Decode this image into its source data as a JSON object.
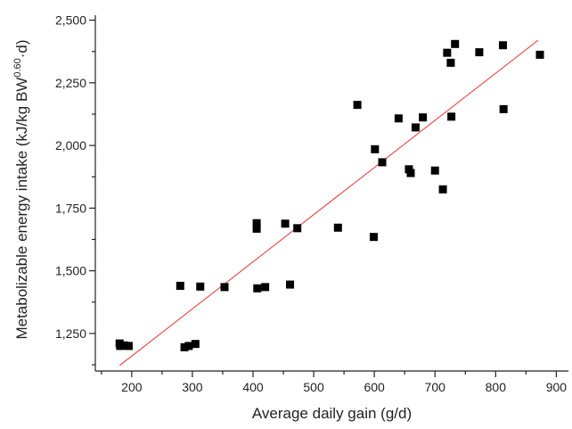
{
  "chart_data": {
    "type": "scatter",
    "title": "",
    "xlabel": "Average daily gain (g/d)",
    "ylabel_parts": {
      "before": "Metabolizable energy intake (kJ/kg BW",
      "sup": "0.60",
      "after": "·d)"
    },
    "xlim": [
      140,
      920
    ],
    "ylim": [
      1100,
      2520
    ],
    "x_ticks": [
      200,
      300,
      400,
      500,
      600,
      700,
      800,
      900
    ],
    "x_tick_labels": [
      "200",
      "300",
      "400",
      "500",
      "600",
      "700",
      "800",
      "900"
    ],
    "x_minor_ticks": [
      150,
      250,
      350,
      450,
      550,
      650,
      750,
      850
    ],
    "y_ticks": [
      1250,
      1500,
      1750,
      2000,
      2250,
      2500
    ],
    "y_tick_labels": [
      "1,250",
      "1,500",
      "1,750",
      "2,000",
      "2,250",
      "2,500"
    ],
    "y_minor_ticks": [
      1125,
      1375,
      1625,
      1875,
      2125,
      2375
    ],
    "grid": false,
    "marker_color": "#000000",
    "fit_line_color": "#e8312f",
    "points": [
      {
        "x": 180,
        "y": 1210
      },
      {
        "x": 181,
        "y": 1200
      },
      {
        "x": 188,
        "y": 1202
      },
      {
        "x": 195,
        "y": 1200
      },
      {
        "x": 280,
        "y": 1440
      },
      {
        "x": 287,
        "y": 1195
      },
      {
        "x": 294,
        "y": 1200
      },
      {
        "x": 305,
        "y": 1208
      },
      {
        "x": 313,
        "y": 1437
      },
      {
        "x": 353,
        "y": 1435
      },
      {
        "x": 406,
        "y": 1690
      },
      {
        "x": 406,
        "y": 1668
      },
      {
        "x": 407,
        "y": 1430
      },
      {
        "x": 420,
        "y": 1435
      },
      {
        "x": 453,
        "y": 1688
      },
      {
        "x": 461,
        "y": 1445
      },
      {
        "x": 473,
        "y": 1670
      },
      {
        "x": 540,
        "y": 1672
      },
      {
        "x": 572,
        "y": 2162
      },
      {
        "x": 599,
        "y": 1635
      },
      {
        "x": 601,
        "y": 1985
      },
      {
        "x": 613,
        "y": 1933
      },
      {
        "x": 640,
        "y": 2108
      },
      {
        "x": 657,
        "y": 1905
      },
      {
        "x": 660,
        "y": 1890
      },
      {
        "x": 668,
        "y": 2072
      },
      {
        "x": 680,
        "y": 2112
      },
      {
        "x": 700,
        "y": 1900
      },
      {
        "x": 713,
        "y": 1825
      },
      {
        "x": 720,
        "y": 2370
      },
      {
        "x": 726,
        "y": 2330
      },
      {
        "x": 727,
        "y": 2115
      },
      {
        "x": 733,
        "y": 2405
      },
      {
        "x": 773,
        "y": 2372
      },
      {
        "x": 812,
        "y": 2400
      },
      {
        "x": 813,
        "y": 2145
      },
      {
        "x": 873,
        "y": 2362
      }
    ],
    "fit_line": {
      "x": [
        180,
        870
      ],
      "y": [
        1122,
        2420
      ]
    }
  }
}
